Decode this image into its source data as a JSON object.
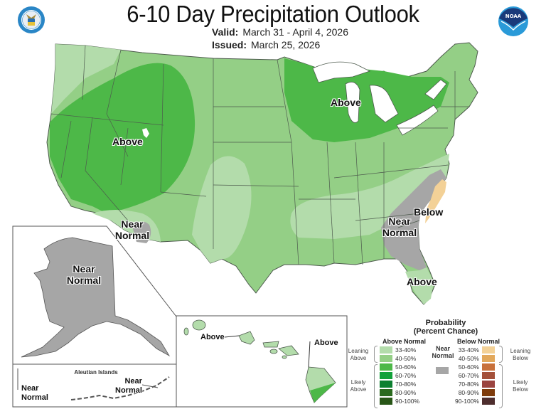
{
  "header": {
    "title": "6-10 Day Precipitation Outlook",
    "valid_label": "Valid:",
    "valid_value": "March 31 - April 4, 2026",
    "issued_label": "Issued:",
    "issued_value": "March 25, 2026"
  },
  "logos": {
    "left": "doc-seal-icon",
    "right": "noaa-logo-icon",
    "noaa_text": "NOAA"
  },
  "map": {
    "conus_labels": [
      {
        "text": "Above",
        "region": "great-basin-rockies"
      },
      {
        "text": "Above",
        "region": "great-lakes"
      },
      {
        "text": "Near Normal",
        "region": "southern-california-arizona"
      },
      {
        "text": "Near Normal",
        "region": "southeast"
      },
      {
        "text": "Below",
        "region": "carolinas-coast"
      },
      {
        "text": "Above",
        "region": "florida"
      }
    ],
    "alaska": {
      "label_line1": "Near",
      "label_line2": "Normal"
    },
    "aleutians": {
      "title": "Aleutian Islands",
      "left_label_line1": "Near",
      "left_label_line2": "Normal",
      "right_label_line1": "Near",
      "right_label_line2": "Normal"
    },
    "hawaii": {
      "label_west": "Above",
      "label_east": "Above"
    }
  },
  "legend": {
    "title_line1": "Probability",
    "title_line2": "(Percent Chance)",
    "above_header": "Above Normal",
    "below_header": "Below Normal",
    "near_normal_line1": "Near",
    "near_normal_line2": "Normal",
    "near_normal_color": "#a6a6a6",
    "leaning_above_line1": "Leaning",
    "leaning_above_line2": "Above",
    "likely_above_line1": "Likely",
    "likely_above_line2": "Above",
    "leaning_below_line1": "Leaning",
    "leaning_below_line2": "Below",
    "likely_below_line1": "Likely",
    "likely_below_line2": "Below",
    "above": [
      {
        "range": "33-40%",
        "color": "#b3dcab"
      },
      {
        "range": "40-50%",
        "color": "#94cf86"
      },
      {
        "range": "50-60%",
        "color": "#4db848"
      },
      {
        "range": "60-70%",
        "color": "#12a13a"
      },
      {
        "range": "70-80%",
        "color": "#0d8030"
      },
      {
        "range": "80-90%",
        "color": "#2a6a1e"
      },
      {
        "range": "90-100%",
        "color": "#285617"
      }
    ],
    "below": [
      {
        "range": "33-40%",
        "color": "#f3d197"
      },
      {
        "range": "40-50%",
        "color": "#e2a85b"
      },
      {
        "range": "50-60%",
        "color": "#c8703a"
      },
      {
        "range": "60-70%",
        "color": "#a4503a"
      },
      {
        "range": "70-80%",
        "color": "#9b4440"
      },
      {
        "range": "80-90%",
        "color": "#7e3b0b"
      },
      {
        "range": "90-100%",
        "color": "#4e2e2e"
      }
    ]
  }
}
